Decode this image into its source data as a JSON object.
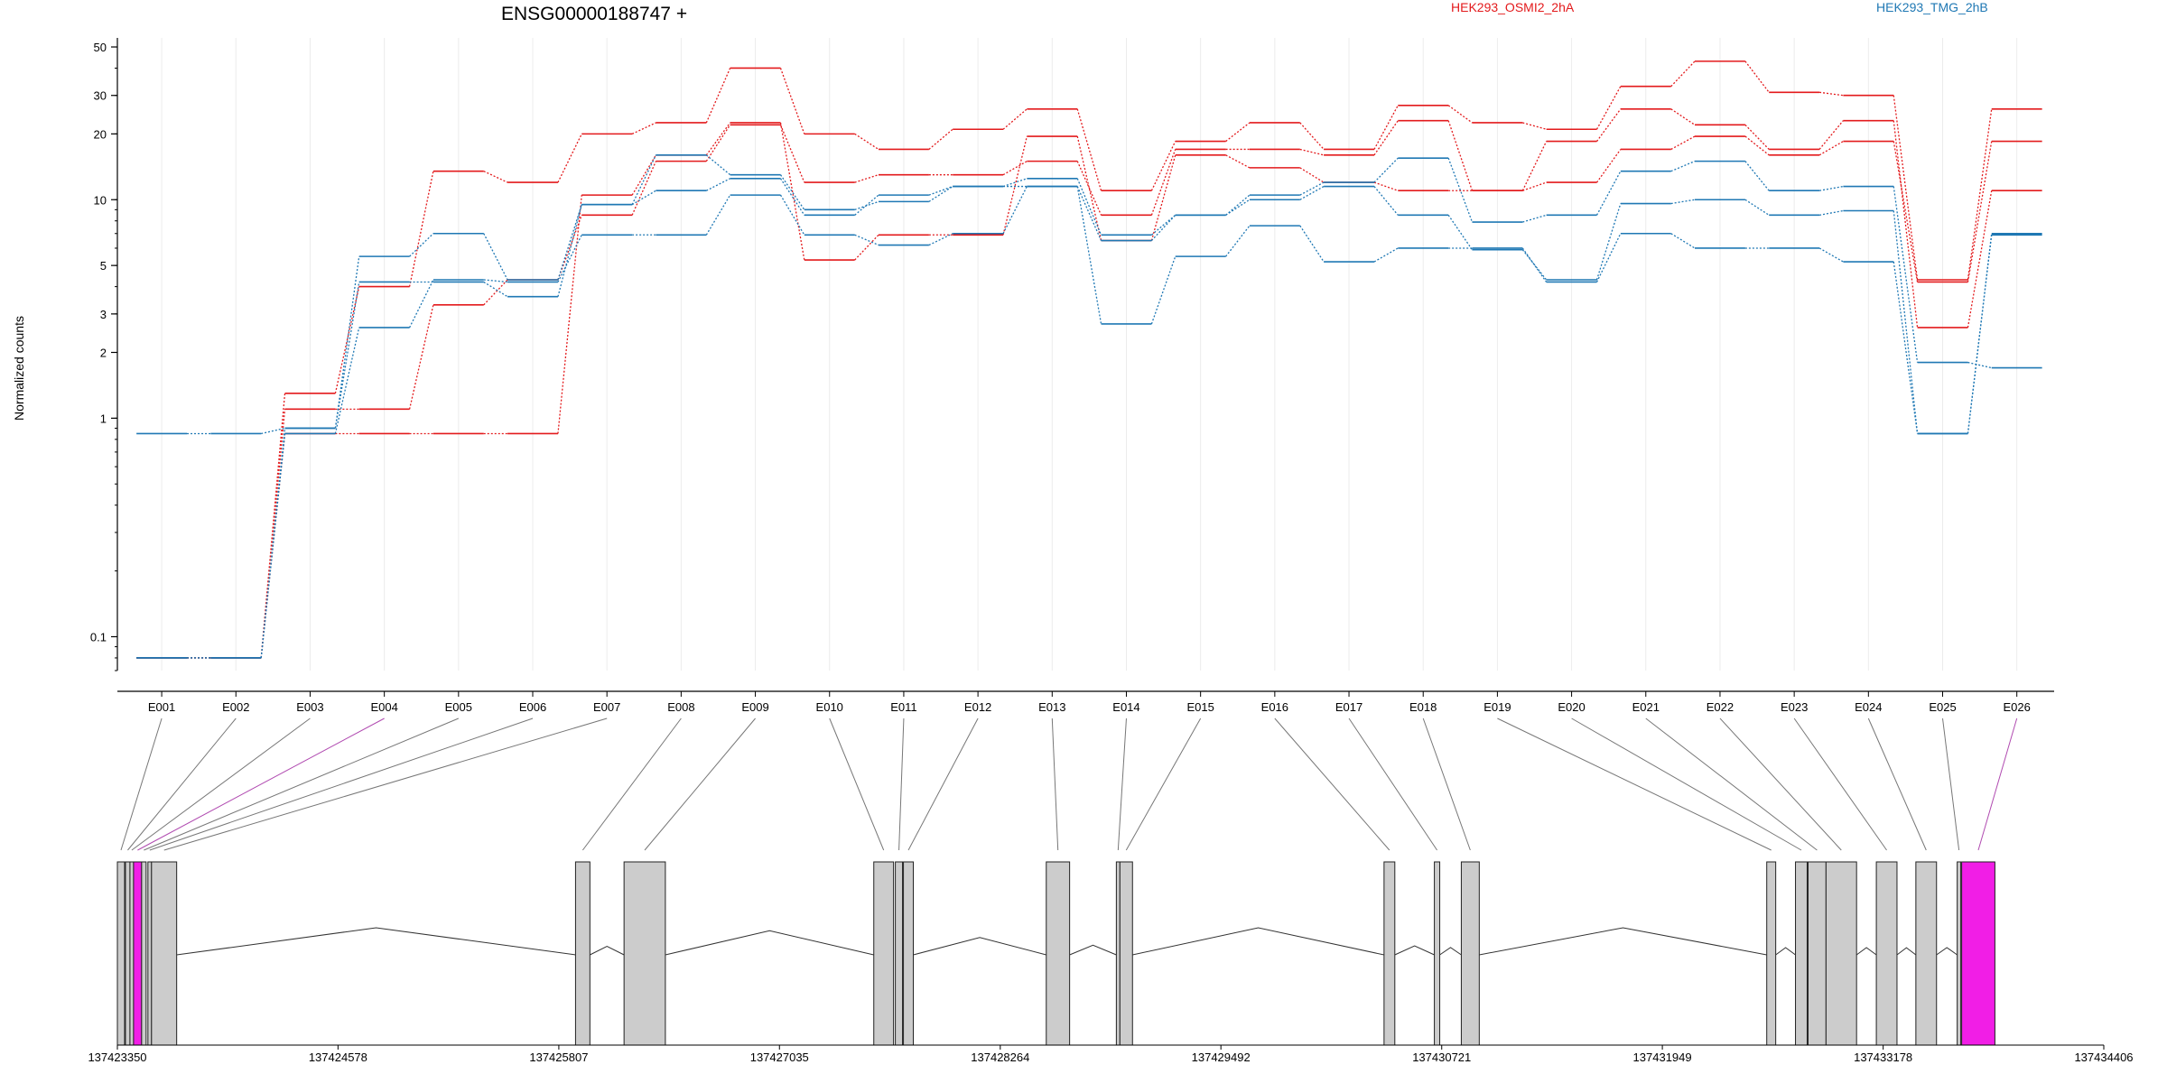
{
  "chart_data": {
    "type": "line",
    "title": "ENSG00000188747 +",
    "ylabel": "Normalized counts",
    "yscale": "log",
    "ylim": [
      0.07,
      55
    ],
    "yticks": [
      0.1,
      1,
      2,
      3,
      5,
      10,
      20,
      30,
      50
    ],
    "ytick_labels": [
      "0.1",
      "1",
      "2",
      "3",
      "5",
      "10",
      "20",
      "30",
      "50"
    ],
    "grid": "vertical",
    "legend": [
      {
        "label": "HEK293_OSMI2_2hA",
        "color": "#e31a1c"
      },
      {
        "label": "HEK293_TMG_2hB",
        "color": "#1f78b4"
      }
    ],
    "categories": [
      "E001",
      "E002",
      "E003",
      "E004",
      "E005",
      "E006",
      "E007",
      "E008",
      "E009",
      "E010",
      "E011",
      "E012",
      "E013",
      "E014",
      "E015",
      "E016",
      "E017",
      "E018",
      "E019",
      "E020",
      "E021",
      "E022",
      "E023",
      "E024",
      "E025",
      "E026"
    ],
    "series": [
      {
        "color": "#e31a1c",
        "values": [
          0.08,
          0.08,
          1.3,
          4.0,
          13.5,
          12.0,
          20,
          22.5,
          40,
          20,
          17,
          21,
          26,
          11,
          18.5,
          22.5,
          17,
          27,
          22.5,
          21,
          33,
          43,
          31,
          30,
          4.3,
          26
        ]
      },
      {
        "color": "#e31a1c",
        "values": [
          0.08,
          0.08,
          1.1,
          1.1,
          3.3,
          4.3,
          8.5,
          15,
          22,
          12,
          13,
          13,
          15,
          8.5,
          17,
          17,
          16,
          23,
          11,
          12,
          17,
          19.5,
          16,
          18.5,
          4.2,
          18.5
        ]
      },
      {
        "color": "#e31a1c",
        "values": [
          0.08,
          0.08,
          0.85,
          0.85,
          0.85,
          0.85,
          10.5,
          16,
          22.5,
          5.3,
          6.9,
          6.9,
          19.5,
          6.5,
          16,
          14,
          12,
          11,
          11,
          18.5,
          26,
          22,
          17,
          23,
          2.6,
          11
        ]
      },
      {
        "color": "#1f78b4",
        "values": [
          0.85,
          0.85,
          0.9,
          5.5,
          7.0,
          4.3,
          9.5,
          11,
          12.5,
          8.5,
          10.5,
          11.5,
          12.5,
          6.9,
          8.5,
          10.5,
          12,
          15.5,
          7.9,
          8.5,
          13.5,
          15,
          11,
          11.5,
          1.8,
          1.7
        ]
      },
      {
        "color": "#1f78b4",
        "values": [
          0.08,
          0.08,
          0.9,
          4.2,
          4.2,
          3.6,
          9.5,
          16,
          13,
          9,
          9.8,
          11.5,
          11.5,
          6.5,
          8.5,
          10,
          11.5,
          8.5,
          5.9,
          4.3,
          9.6,
          10,
          8.5,
          8.9,
          0.85,
          7.0
        ]
      },
      {
        "color": "#1f78b4",
        "values": [
          0.08,
          0.08,
          0.85,
          2.6,
          4.3,
          4.2,
          6.9,
          6.9,
          10.5,
          6.9,
          6.2,
          7.0,
          11.5,
          2.7,
          5.5,
          7.6,
          5.2,
          6.0,
          6.0,
          4.2,
          7.0,
          6.0,
          6.0,
          5.2,
          0.85,
          6.9
        ]
      }
    ],
    "exon_axis": {
      "xlabel": "",
      "tick_labels": [
        "137423350",
        "137424578",
        "137425807",
        "137427035",
        "137428264",
        "137429492",
        "137430721",
        "137431949",
        "137433178",
        "137434406"
      ],
      "tick_values": [
        137423350,
        137424578,
        137425807,
        137427035,
        137428264,
        137429492,
        137430721,
        137431949,
        137433178,
        137434406
      ],
      "gene_start": 137423350,
      "gene_end": 137434406,
      "exons": [
        {
          "id": "E001",
          "start": 137423350,
          "end": 137423390,
          "highlight": false
        },
        {
          "id": "E002",
          "start": 137423395,
          "end": 137423420,
          "highlight": false
        },
        {
          "id": "E003",
          "start": 137423420,
          "end": 137423440,
          "highlight": false
        },
        {
          "id": "E004",
          "start": 137423440,
          "end": 137423485,
          "highlight": true
        },
        {
          "id": "E005",
          "start": 137423485,
          "end": 137423510,
          "highlight": false
        },
        {
          "id": "E006",
          "start": 137423520,
          "end": 137423540,
          "highlight": false
        },
        {
          "id": "E007",
          "start": 137423540,
          "end": 137423680,
          "highlight": false
        },
        {
          "id": "E008",
          "start": 137425900,
          "end": 137425980,
          "highlight": false
        },
        {
          "id": "E009",
          "start": 137426170,
          "end": 137426400,
          "highlight": false
        },
        {
          "id": "E010",
          "start": 137427560,
          "end": 137427670,
          "highlight": false
        },
        {
          "id": "E011",
          "start": 137427680,
          "end": 137427720,
          "highlight": false
        },
        {
          "id": "E012",
          "start": 137427725,
          "end": 137427780,
          "highlight": false
        },
        {
          "id": "E013",
          "start": 137428520,
          "end": 137428650,
          "highlight": false
        },
        {
          "id": "E014",
          "start": 137428910,
          "end": 137428930,
          "highlight": false
        },
        {
          "id": "E015",
          "start": 137428930,
          "end": 137429000,
          "highlight": false
        },
        {
          "id": "E016",
          "start": 137430400,
          "end": 137430460,
          "highlight": false
        },
        {
          "id": "E017",
          "start": 137430680,
          "end": 137430710,
          "highlight": false
        },
        {
          "id": "E018",
          "start": 137430830,
          "end": 137430930,
          "highlight": false
        },
        {
          "id": "E019",
          "start": 137432530,
          "end": 137432580,
          "highlight": false
        },
        {
          "id": "E020",
          "start": 137432690,
          "end": 137432755,
          "highlight": false
        },
        {
          "id": "E021",
          "start": 137432760,
          "end": 137432860,
          "highlight": false
        },
        {
          "id": "E022",
          "start": 137432860,
          "end": 137433030,
          "highlight": false
        },
        {
          "id": "E023",
          "start": 137433140,
          "end": 137433255,
          "highlight": false
        },
        {
          "id": "E024",
          "start": 137433360,
          "end": 137433475,
          "highlight": false
        },
        {
          "id": "E025",
          "start": 137433590,
          "end": 137433610,
          "highlight": false
        },
        {
          "id": "E026",
          "start": 137433615,
          "end": 137433800,
          "highlight": true
        }
      ]
    }
  }
}
